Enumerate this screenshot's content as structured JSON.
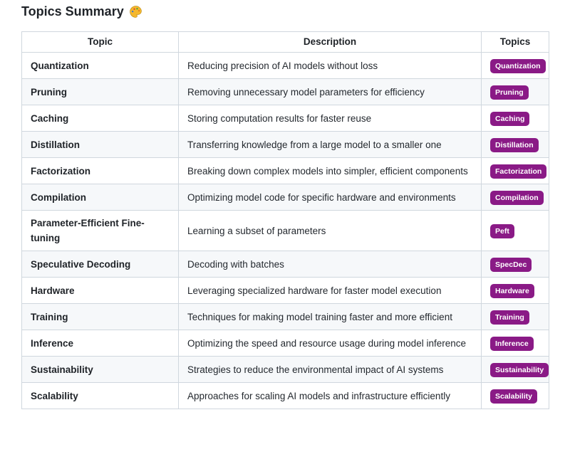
{
  "header": {
    "title": "Topics Summary",
    "icon": "palette-icon"
  },
  "table": {
    "headers": [
      "Topic",
      "Description",
      "Topics"
    ],
    "rows": [
      {
        "topic": "Quantization",
        "description": "Reducing precision of AI models without loss",
        "badge": "Quantization"
      },
      {
        "topic": "Pruning",
        "description": "Removing unnecessary model parameters for efficiency",
        "badge": "Pruning"
      },
      {
        "topic": "Caching",
        "description": "Storing computation results for faster reuse",
        "badge": "Caching"
      },
      {
        "topic": "Distillation",
        "description": "Transferring knowledge from a large model to a smaller one",
        "badge": "Distillation"
      },
      {
        "topic": "Factorization",
        "description": "Breaking down complex models into simpler, efficient components",
        "badge": "Factorization"
      },
      {
        "topic": "Compilation",
        "description": "Optimizing model code for specific hardware and environments",
        "badge": "Compilation"
      },
      {
        "topic": "Parameter-Efficient Fine-tuning",
        "description": "Learning a subset of parameters",
        "badge": "Peft"
      },
      {
        "topic": "Speculative Decoding",
        "description": "Decoding with batches",
        "badge": "SpecDec"
      },
      {
        "topic": "Hardware",
        "description": "Leveraging specialized hardware for faster model execution",
        "badge": "Hardware"
      },
      {
        "topic": "Training",
        "description": "Techniques for making model training faster and more efficient",
        "badge": "Training"
      },
      {
        "topic": "Inference",
        "description": "Optimizing the speed and resource usage during model inference",
        "badge": "Inference"
      },
      {
        "topic": "Sustainability",
        "description": "Strategies to reduce the environmental impact of AI systems",
        "badge": "Sustainability"
      },
      {
        "topic": "Scalability",
        "description": "Approaches for scaling AI models and infrastructure efficiently",
        "badge": "Scalability"
      }
    ]
  },
  "colors": {
    "badge_bg": "#8a1a86",
    "badge_text": "#ffffff",
    "row_alt": "#f6f8fa",
    "border": "#d0d7de",
    "text": "#1f2328"
  }
}
